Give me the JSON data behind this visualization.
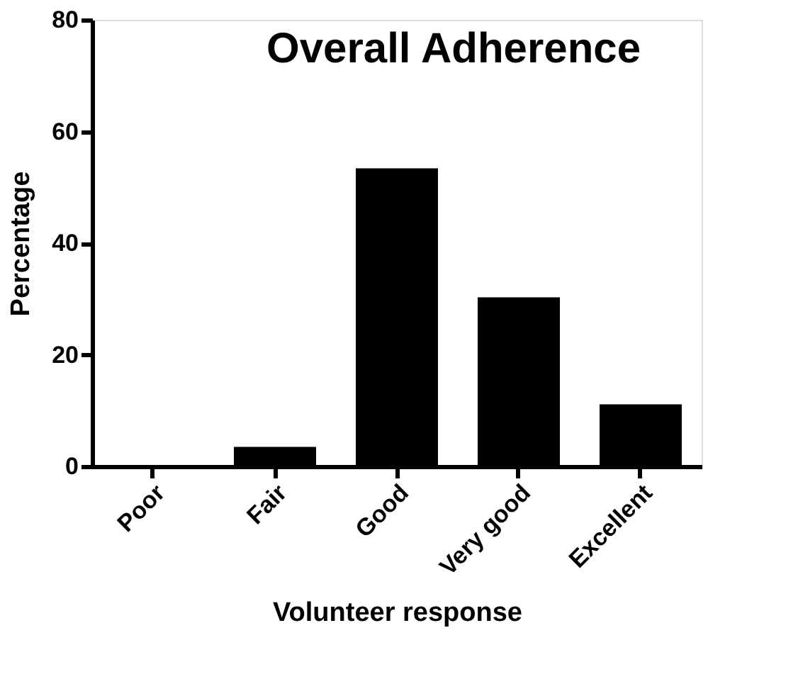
{
  "chart_data": {
    "type": "bar",
    "title": "Overall Adherence",
    "xlabel": "Volunteer response",
    "ylabel": "Percentage",
    "categories": [
      "Poor",
      "Fair",
      "Good",
      "Very good",
      "Excellent"
    ],
    "values": [
      0,
      3.5,
      53.4,
      30.3,
      11.1
    ],
    "color": "#000000",
    "ylim": [
      0,
      80
    ],
    "yticks": [
      0,
      20,
      40,
      60,
      80
    ],
    "grid": false
  }
}
